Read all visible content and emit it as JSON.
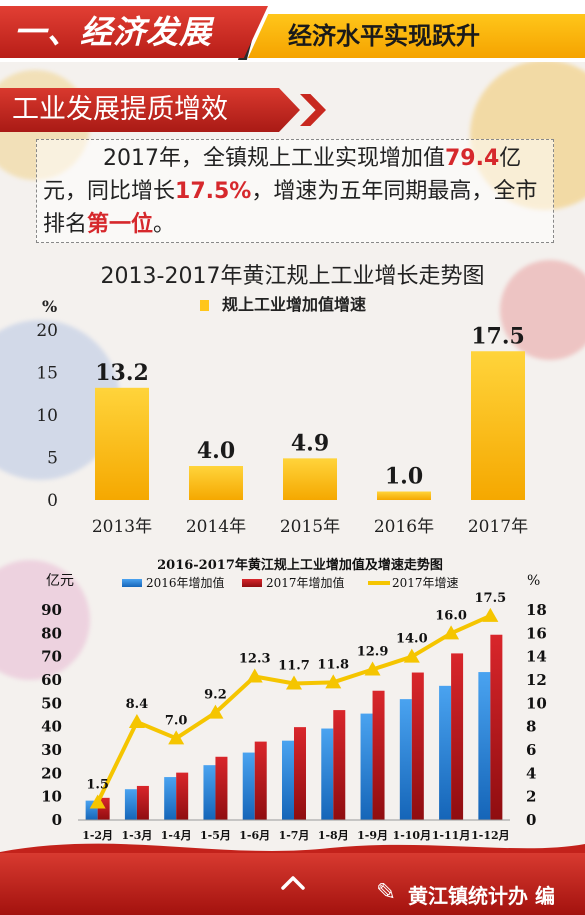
{
  "header": {
    "section": "一、经济发展",
    "subtitle": "经济水平实现跃升"
  },
  "topic": "工业发展提质增效",
  "intro": {
    "p1": "2017年，全镇规上工业实现增加值",
    "v1": "79.4",
    "p2": "亿元，同比增长",
    "v2": "17.5%",
    "p3": "，增速为五年同期最高，全市排名",
    "v3": "第一位",
    "p4": "。"
  },
  "chart_data": [
    {
      "type": "bar",
      "title": "2013-2017年黄江规上工业增长走势图",
      "ylabel": "%",
      "legend": [
        "规上工业增加值增速"
      ],
      "legend_position": "top-center",
      "categories": [
        "2013年",
        "2014年",
        "2015年",
        "2016年",
        "2017年"
      ],
      "values": [
        13.2,
        4.0,
        4.9,
        1.0,
        17.5
      ],
      "value_labels": [
        "13.2",
        "4.0",
        "4.9",
        "1.0",
        "17.5"
      ],
      "ylim": [
        0,
        20
      ],
      "yticks": [
        "0",
        "5",
        "10",
        "15",
        "20"
      ],
      "grid": false,
      "color": "#ffc61a"
    },
    {
      "type": "bar",
      "title": "2016-2017年黄江规上工业增加值及增速走势图",
      "ylabel_left": "亿元",
      "ylabel_right": "%",
      "legend": [
        "2016年增加值",
        "2017年增加值",
        "2017年增速"
      ],
      "legend_position": "top",
      "categories": [
        "1-2月",
        "1-3月",
        "1-4月",
        "1-5月",
        "1-6月",
        "1-7月",
        "1-8月",
        "1-9月",
        "1-10月",
        "1-11月",
        "1-12月"
      ],
      "series": [
        {
          "name": "2016年增加值",
          "type": "bar",
          "axis": "left",
          "color": "#2a7fd4",
          "values": [
            8.3,
            13.2,
            18.4,
            23.5,
            28.9,
            34.0,
            39.2,
            45.6,
            51.8,
            57.5,
            63.4
          ]
        },
        {
          "name": "2017年增加值",
          "type": "bar",
          "axis": "left",
          "color": "#c3171c",
          "values": [
            9.5,
            14.6,
            20.3,
            27.1,
            33.6,
            39.8,
            47.1,
            55.4,
            63.2,
            71.4,
            79.4
          ]
        },
        {
          "name": "2017年增速",
          "type": "line",
          "axis": "right",
          "color": "#f5c500",
          "values": [
            1.5,
            8.4,
            7.0,
            9.2,
            12.3,
            11.7,
            11.8,
            12.9,
            14.0,
            16.0,
            17.5
          ],
          "labels": [
            "1.5",
            "8.4",
            "7.0",
            "9.2",
            "12.3",
            "11.7",
            "11.8",
            "12.9",
            "14.0",
            "16.0",
            "17.5"
          ]
        }
      ],
      "ylim_left": [
        0,
        90
      ],
      "yticks_left": [
        "0",
        "10",
        "20",
        "30",
        "40",
        "50",
        "60",
        "70",
        "80",
        "90"
      ],
      "ylim_right": [
        0,
        18
      ],
      "yticks_right": [
        "0",
        "2",
        "4",
        "6",
        "8",
        "10",
        "12",
        "14",
        "16",
        "18"
      ],
      "grid": false
    }
  ],
  "footer": {
    "credit": "黄江镇统计办 编",
    "logo_icon": "huangjiang-logo-icon",
    "nav_icon": "chevron-up-icon"
  }
}
